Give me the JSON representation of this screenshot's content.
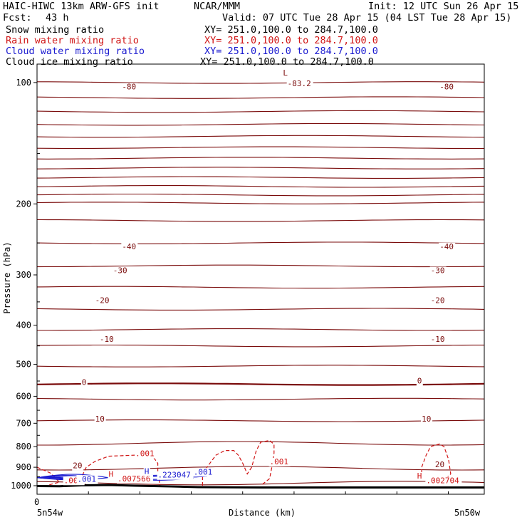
{
  "header": {
    "title_left": "HAIC-HIWC 13km ARW-GFS init",
    "org": "NCAR/MMM",
    "init": "Init: 12 UTC Sun 26 Apr 15",
    "fcst_label": "Fcst:",
    "fcst_value": "43 h",
    "valid": "Valid: 07 UTC Tue 28 Apr 15 (04 LST Tue 28 Apr 15)",
    "fields": [
      {
        "name": "Snow mixing ratio",
        "xy": "XY= 251.0,100.0 to 284.7,100.0",
        "color": "#000000"
      },
      {
        "name": "Rain water mixing ratio",
        "xy": "XY= 251.0,100.0 to 284.7,100.0",
        "color": "#d01515"
      },
      {
        "name": "Cloud water mixing ratio",
        "xy": "XY= 251.0,100.0 to 284.7,100.0",
        "color": "#1a1ad0"
      },
      {
        "name": "Cloud ice mixing ratio",
        "xy": "XY= 251.0,100.0 to 284.7,100.0",
        "color": "#000000"
      }
    ]
  },
  "chart_data": {
    "type": "line",
    "ylabel": "Pressure (hPa)",
    "xlabel": "Distance (km)",
    "x_origin_label": "0",
    "x_left_label": "5n54w",
    "x_right_label": "5n50w",
    "y_ticks": [
      100,
      200,
      300,
      400,
      500,
      600,
      700,
      800,
      900,
      1000
    ],
    "y_scale": "log",
    "ylim": [
      1050,
      90
    ],
    "colors": {
      "temperature": "#7a0b0b",
      "rain": "#d01515",
      "cloud": "#1a1ad0",
      "terrain": "#000000"
    },
    "temperature_labels": [
      {
        "text": "-83.2",
        "x": 0.56,
        "p": 102
      },
      {
        "text": "L",
        "x": 0.55,
        "p": 96
      },
      {
        "text": "-80",
        "x": 0.19,
        "p": 104
      },
      {
        "text": "-80",
        "x": 0.9,
        "p": 104
      },
      {
        "text": "-40",
        "x": 0.19,
        "p": 259
      },
      {
        "text": "-40",
        "x": 0.9,
        "p": 259
      },
      {
        "text": "-30",
        "x": 0.17,
        "p": 297
      },
      {
        "text": "-30",
        "x": 0.88,
        "p": 297
      },
      {
        "text": "-20",
        "x": 0.13,
        "p": 352
      },
      {
        "text": "-20",
        "x": 0.88,
        "p": 352
      },
      {
        "text": "-10",
        "x": 0.14,
        "p": 440
      },
      {
        "text": "-10",
        "x": 0.88,
        "p": 440
      },
      {
        "text": "0",
        "x": 0.1,
        "p": 562
      },
      {
        "text": "0",
        "x": 0.85,
        "p": 558
      },
      {
        "text": "10",
        "x": 0.13,
        "p": 693
      },
      {
        "text": "10",
        "x": 0.86,
        "p": 693
      },
      {
        "text": "20",
        "x": 0.08,
        "p": 905
      },
      {
        "text": "20",
        "x": 0.89,
        "p": 900
      }
    ],
    "rain_labels": [
      {
        "text": ".001",
        "x": 0.22,
        "p": 845
      },
      {
        "text": ".001",
        "x": 0.52,
        "p": 885
      },
      {
        "text": ".001",
        "x": 0.06,
        "p": 985
      },
      {
        "text": "H",
        "x": 0.16,
        "p": 950
      },
      {
        "text": ".007566",
        "x": 0.18,
        "p": 975
      },
      {
        "text": "H",
        "x": 0.85,
        "p": 960
      },
      {
        "text": ".002704",
        "x": 0.87,
        "p": 985
      }
    ],
    "cloud_labels": [
      {
        "text": ".001",
        "x": 0.09,
        "p": 977
      },
      {
        "text": "H",
        "x": 0.24,
        "p": 935
      },
      {
        "text": ".223047",
        "x": 0.27,
        "p": 955
      },
      {
        "text": ".001",
        "x": 0.35,
        "p": 938
      }
    ]
  }
}
